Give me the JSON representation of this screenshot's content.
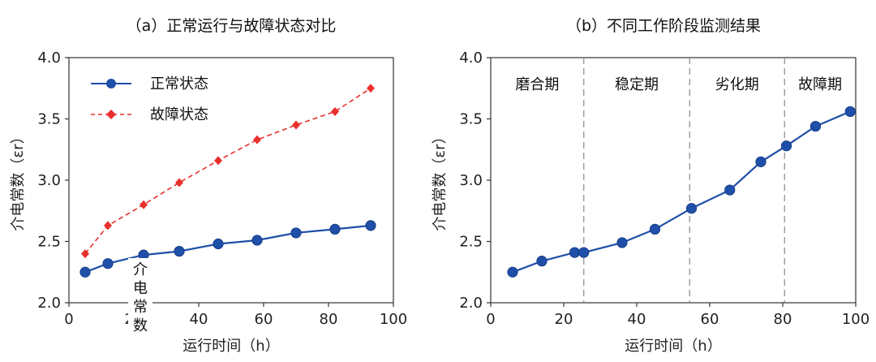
{
  "chart_data": [
    {
      "type": "line",
      "title": "（a）正常运行与故障状态对比",
      "xlabel": "运行时间（h）",
      "ylabel": "介电常数（εr）",
      "xlim": [
        0,
        100
      ],
      "ylim": [
        2.0,
        4.0
      ],
      "xticks": [
        "0",
        "20",
        "40",
        "60",
        "80",
        "100"
      ],
      "yticks": [
        "2.0",
        "2.5",
        "3.0",
        "3.5",
        "4.0"
      ],
      "legend": "top-left",
      "series": [
        {
          "name": "正常状态",
          "color": "#1f4fa8",
          "style": "solid",
          "marker": "circle",
          "x": [
            5,
            12,
            23,
            34,
            46,
            58,
            70,
            82,
            93
          ],
          "y": [
            2.25,
            2.32,
            2.39,
            2.42,
            2.48,
            2.51,
            2.57,
            2.6,
            2.63
          ]
        },
        {
          "name": "故障状态",
          "color": "#e8302c",
          "style": "dashed",
          "marker": "diamond",
          "x": [
            5,
            12,
            23,
            34,
            46,
            58,
            70,
            82,
            93
          ],
          "y": [
            2.4,
            2.63,
            2.8,
            2.98,
            3.16,
            3.33,
            3.45,
            3.56,
            3.75
          ]
        }
      ],
      "annotation": "介电常数"
    },
    {
      "type": "line",
      "title": "（b）不同工作阶段监测结果",
      "xlabel": "运行时间（h）",
      "ylabel": "介电常数（εr）",
      "xlim": [
        0,
        100
      ],
      "ylim": [
        2.0,
        4.0
      ],
      "xticks": [
        "0",
        "20",
        "40",
        "60",
        "80",
        "100"
      ],
      "yticks": [
        "2.0",
        "2.5",
        "3.0",
        "3.5",
        "4.0"
      ],
      "phase_boundaries": [
        25.5,
        54.5,
        80.5
      ],
      "phases": [
        "磨合期",
        "稳定期",
        "劣化期",
        "故障期"
      ],
      "series": [
        {
          "color": "#1f4fa8",
          "style": "solid",
          "marker": "circle",
          "x": [
            6,
            14,
            23,
            25.5,
            36,
            45,
            55,
            65.5,
            74,
            81,
            89,
            98.5
          ],
          "y": [
            2.25,
            2.34,
            2.41,
            2.41,
            2.49,
            2.6,
            2.77,
            2.92,
            3.15,
            3.28,
            3.44,
            3.56
          ]
        }
      ]
    }
  ]
}
